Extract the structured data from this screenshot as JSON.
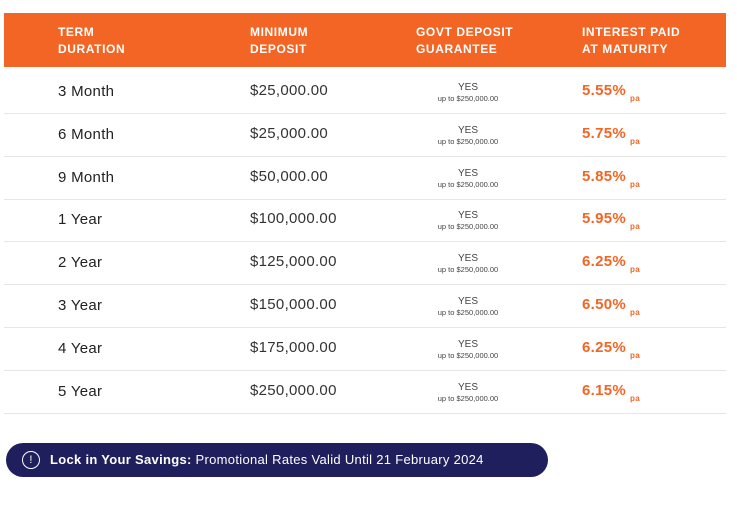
{
  "header": {
    "col1": [
      "TERM",
      "DURATION"
    ],
    "col2": [
      "MINIMUM",
      "DEPOSIT"
    ],
    "col3": [
      "GOVT DEPOSIT",
      "GUARANTEE"
    ],
    "col4": [
      "INTEREST PAID",
      "AT MATURITY"
    ]
  },
  "rows": [
    {
      "term": "3 Month",
      "deposit": "$25,000.00",
      "guarantee": "YES",
      "guarantee_note": "up to $250,000.00",
      "rate": "5.55%",
      "rate_unit": "pa"
    },
    {
      "term": "6 Month",
      "deposit": "$25,000.00",
      "guarantee": "YES",
      "guarantee_note": "up to $250,000.00",
      "rate": "5.75%",
      "rate_unit": "pa"
    },
    {
      "term": "9 Month",
      "deposit": "$50,000.00",
      "guarantee": "YES",
      "guarantee_note": "up to $250,000.00",
      "rate": "5.85%",
      "rate_unit": "pa"
    },
    {
      "term": "1 Year",
      "deposit": "$100,000.00",
      "guarantee": "YES",
      "guarantee_note": "up to $250,000.00",
      "rate": "5.95%",
      "rate_unit": "pa"
    },
    {
      "term": "2 Year",
      "deposit": "$125,000.00",
      "guarantee": "YES",
      "guarantee_note": "up to $250,000.00",
      "rate": "6.25%",
      "rate_unit": "pa"
    },
    {
      "term": "3 Year",
      "deposit": "$150,000.00",
      "guarantee": "YES",
      "guarantee_note": "up to $250,000.00",
      "rate": "6.50%",
      "rate_unit": "pa"
    },
    {
      "term": "4 Year",
      "deposit": "$175,000.00",
      "guarantee": "YES",
      "guarantee_note": "up to $250,000.00",
      "rate": "6.25%",
      "rate_unit": "pa"
    },
    {
      "term": "5 Year",
      "deposit": "$250,000.00",
      "guarantee": "YES",
      "guarantee_note": "up to $250,000.00",
      "rate": "6.15%",
      "rate_unit": "pa"
    }
  ],
  "banner": {
    "icon": "exclamation-circle-icon",
    "icon_glyph": "!",
    "bold": "Lock in Your Savings:",
    "text": " Promotional Rates Valid Until 21 February 2024"
  },
  "colors": {
    "accent": "#f26524",
    "banner": "#1f1f5e"
  }
}
